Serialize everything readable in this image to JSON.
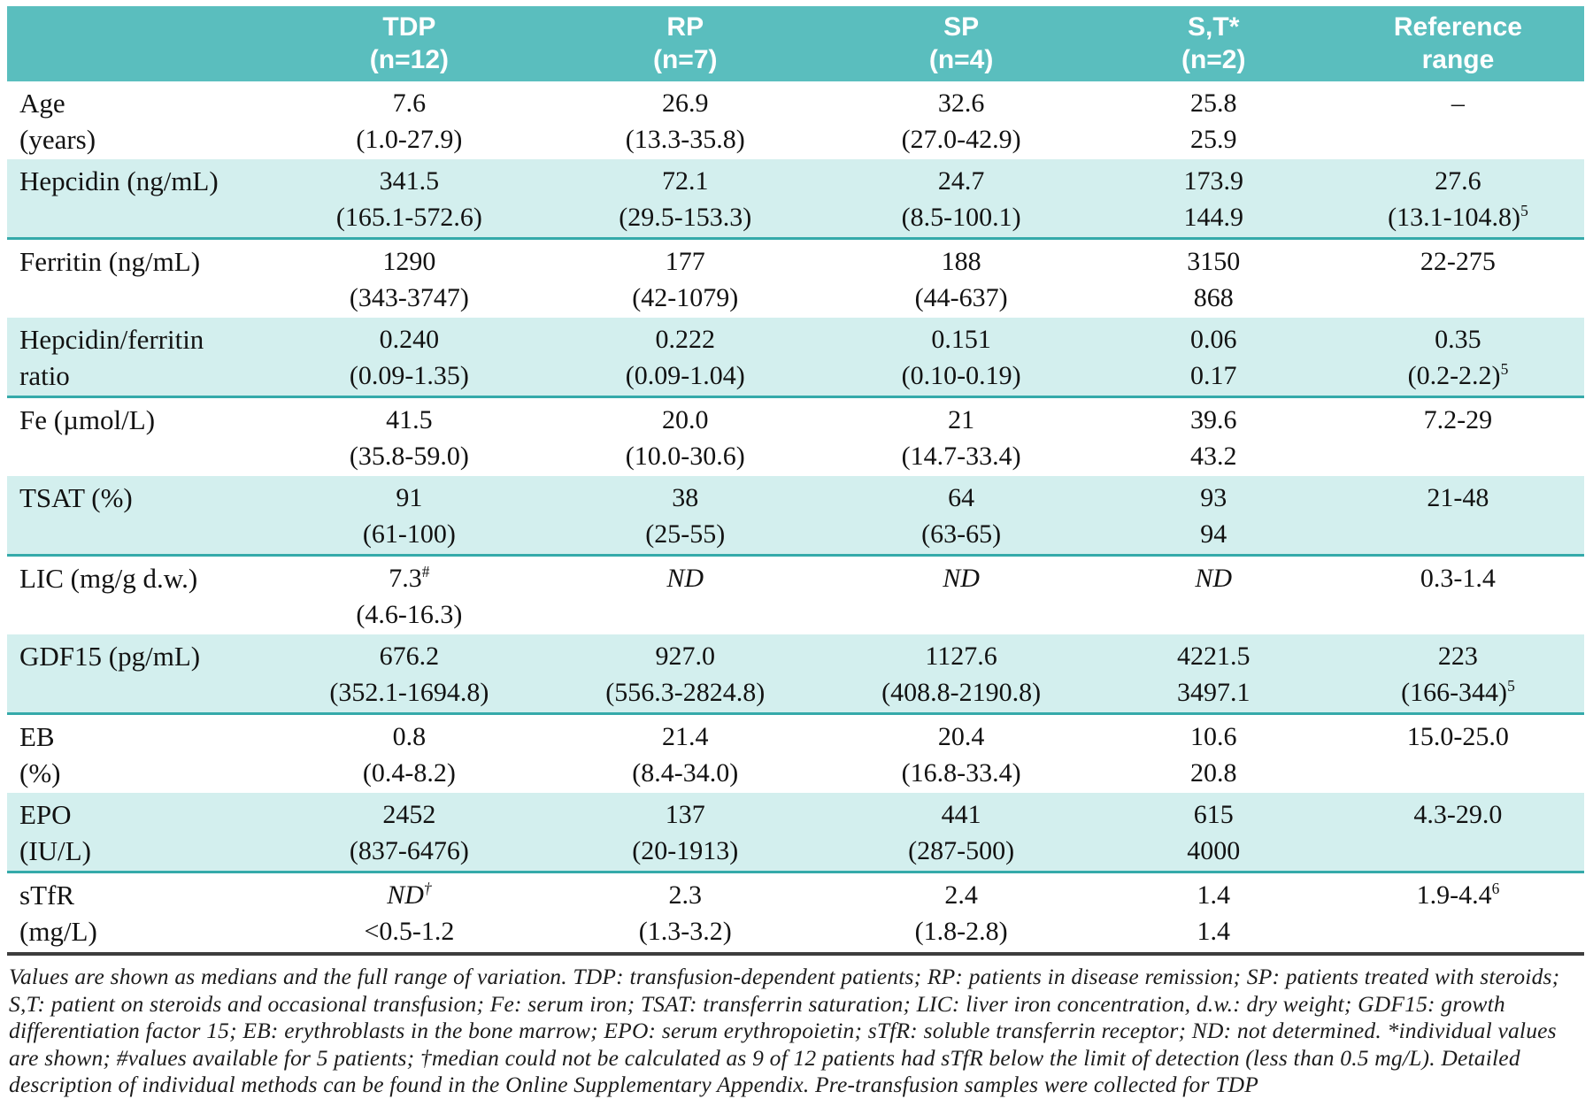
{
  "theme": {
    "header_bg": "#5ABEBE",
    "shaded_row_bg": "#D3EFEE",
    "shaded_row_border": "#35AAAA",
    "footnote_rule": "#3D3D3D",
    "text_color": "#121212"
  },
  "table": {
    "columns": [
      {
        "label": "",
        "sub": ""
      },
      {
        "label": "TDP",
        "sub": "(n=12)"
      },
      {
        "label": "RP",
        "sub": "(n=7)"
      },
      {
        "label": "SP",
        "sub": "(n=4)"
      },
      {
        "label": "S,T*",
        "sub": "(n=2)"
      },
      {
        "label": "Reference",
        "sub": "range"
      }
    ],
    "rows": [
      {
        "label": "Age",
        "label2": "(years)",
        "shaded": false,
        "cells": [
          {
            "v": "7.6",
            "r": "(1.0-27.9)"
          },
          {
            "v": "26.9",
            "r": "(13.3-35.8)"
          },
          {
            "v": "32.6",
            "r": "(27.0-42.9)"
          },
          {
            "v": "25.8",
            "r": "25.9"
          },
          {
            "v": "–",
            "r": ""
          }
        ]
      },
      {
        "label": "Hepcidin (ng/mL)",
        "label2": "",
        "shaded": true,
        "cells": [
          {
            "v": "341.5",
            "r": "(165.1-572.6)"
          },
          {
            "v": "72.1",
            "r": "(29.5-153.3)"
          },
          {
            "v": "24.7",
            "r": "(8.5-100.1)"
          },
          {
            "v": "173.9",
            "r": "144.9"
          },
          {
            "v": "27.6",
            "r": "(13.1-104.8)",
            "rsup": "5"
          }
        ]
      },
      {
        "label": "Ferritin  (ng/mL)",
        "label2": "",
        "shaded": false,
        "cells": [
          {
            "v": "1290",
            "r": "(343-3747)"
          },
          {
            "v": "177",
            "r": "(42-1079)"
          },
          {
            "v": "188",
            "r": "(44-637)"
          },
          {
            "v": "3150",
            "r": "868"
          },
          {
            "v": "22-275",
            "r": ""
          }
        ]
      },
      {
        "label": "Hepcidin/ferritin",
        "label2": "ratio",
        "shaded": true,
        "cells": [
          {
            "v": "0.240",
            "r": "(0.09-1.35)"
          },
          {
            "v": "0.222",
            "r": "(0.09-1.04)"
          },
          {
            "v": "0.151",
            "r": "(0.10-0.19)"
          },
          {
            "v": "0.06",
            "r": "0.17"
          },
          {
            "v": "0.35",
            "r": "(0.2-2.2)",
            "rsup": "5"
          }
        ]
      },
      {
        "label": "Fe (µmol/L)",
        "label2": "",
        "shaded": false,
        "cells": [
          {
            "v": "41.5",
            "r": "(35.8-59.0)"
          },
          {
            "v": "20.0",
            "r": "(10.0-30.6)"
          },
          {
            "v": "21",
            "r": "(14.7-33.4)"
          },
          {
            "v": "39.6",
            "r": "43.2"
          },
          {
            "v": "7.2-29",
            "r": ""
          }
        ]
      },
      {
        "label": "TSAT (%)",
        "label2": "",
        "shaded": true,
        "cells": [
          {
            "v": "91",
            "r": "(61-100)"
          },
          {
            "v": "38",
            "r": "(25-55)"
          },
          {
            "v": "64",
            "r": "(63-65)"
          },
          {
            "v": "93",
            "r": "94"
          },
          {
            "v": "21-48",
            "r": ""
          }
        ]
      },
      {
        "label": "LIC (mg/g d.w.)",
        "label2": "",
        "shaded": false,
        "cells": [
          {
            "v": "7.3",
            "vsup": "#",
            "r": "(4.6-16.3)"
          },
          {
            "v": "ND",
            "vitalic": true,
            "r": ""
          },
          {
            "v": "ND",
            "vitalic": true,
            "r": ""
          },
          {
            "v": "ND",
            "vitalic": true,
            "r": ""
          },
          {
            "v": "0.3-1.4",
            "r": ""
          }
        ]
      },
      {
        "label": "GDF15 (pg/mL)",
        "label2": "",
        "shaded": true,
        "cells": [
          {
            "v": "676.2",
            "r": "(352.1-1694.8)"
          },
          {
            "v": "927.0",
            "r": "(556.3-2824.8)"
          },
          {
            "v": "1127.6",
            "r": "(408.8-2190.8)"
          },
          {
            "v": "4221.5",
            "r": "3497.1"
          },
          {
            "v": "223",
            "r": "(166-344)",
            "rsup": "5"
          }
        ]
      },
      {
        "label": "EB",
        "label2": "(%)",
        "shaded": false,
        "cells": [
          {
            "v": "0.8",
            "r": "(0.4-8.2)"
          },
          {
            "v": "21.4",
            "r": "(8.4-34.0)"
          },
          {
            "v": "20.4",
            "r": "(16.8-33.4)"
          },
          {
            "v": "10.6",
            "r": "20.8"
          },
          {
            "v": "15.0-25.0",
            "r": ""
          }
        ]
      },
      {
        "label": "EPO",
        "label2": "(IU/L)",
        "shaded": true,
        "cells": [
          {
            "v": "2452",
            "r": "(837-6476)"
          },
          {
            "v": "137",
            "r": "(20-1913)"
          },
          {
            "v": "441",
            "r": "(287-500)"
          },
          {
            "v": "615",
            "r": "4000"
          },
          {
            "v": "4.3-29.0",
            "r": ""
          }
        ]
      },
      {
        "label": "sTfR",
        "label2": "(mg/L)",
        "shaded": false,
        "cells": [
          {
            "v": "ND",
            "vitalic": true,
            "vsup": "†",
            "r": "<0.5-1.2"
          },
          {
            "v": "2.3",
            "r": "(1.3-3.2)"
          },
          {
            "v": "2.4",
            "r": "(1.8-2.8)"
          },
          {
            "v": "1.4",
            "r": "1.4"
          },
          {
            "v": "1.9-4.4",
            "vsup": "6",
            "r": ""
          }
        ]
      }
    ]
  },
  "footnote": "Values are shown as medians and the full range of variation. TDP: transfusion-dependent patients; RP: patients in disease remission; SP: patients treated with steroids; S,T: patient on steroids and occasional transfusion; Fe: serum iron; TSAT: transferrin saturation; LIC: liver iron concentration, d.w.: dry weight; GDF15: growth differentiation factor 15; EB: erythroblasts in the bone marrow; EPO: serum erythropoietin; sTfR: soluble transferrin receptor; ND: not determined. *individual values are shown; #values available for 5 patients; †median could not be calculated as 9 of 12 patients had sTfR below the limit of detection (less than 0.5 mg/L). Detailed description of individual methods can be found in the Online Supplementary Appendix. Pre-transfusion samples were collected for TDP"
}
